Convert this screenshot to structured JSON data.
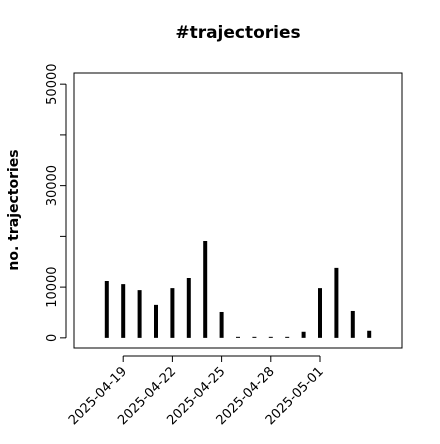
{
  "chart_data": {
    "type": "bar",
    "title": "#trajectories",
    "y_label": "no. trajectories",
    "x": [
      "2025-04-18",
      "2025-04-19",
      "2025-04-20",
      "2025-04-21",
      "2025-04-22",
      "2025-04-23",
      "2025-04-24",
      "2025-04-25",
      "2025-04-26",
      "2025-04-27",
      "2025-04-28",
      "2025-04-29",
      "2025-04-30",
      "2025-05-01",
      "2025-05-02",
      "2025-05-03",
      "2025-05-04"
    ],
    "values": [
      11200,
      10600,
      9400,
      6500,
      9800,
      11800,
      19100,
      5100,
      200,
      200,
      200,
      200,
      1200,
      9800,
      13800,
      5300,
      1400
    ],
    "color": "#000000",
    "xlim": [
      "2025-04-16",
      "2025-05-06"
    ],
    "xticks": [
      "2025-04-19",
      "2025-04-22",
      "2025-04-25",
      "2025-04-28",
      "2025-05-01"
    ],
    "ylim": [
      -2000,
      52200
    ],
    "yticks": [
      0,
      10000,
      30000,
      50000
    ],
    "yticks_unlabeled": [
      20000,
      40000
    ]
  }
}
